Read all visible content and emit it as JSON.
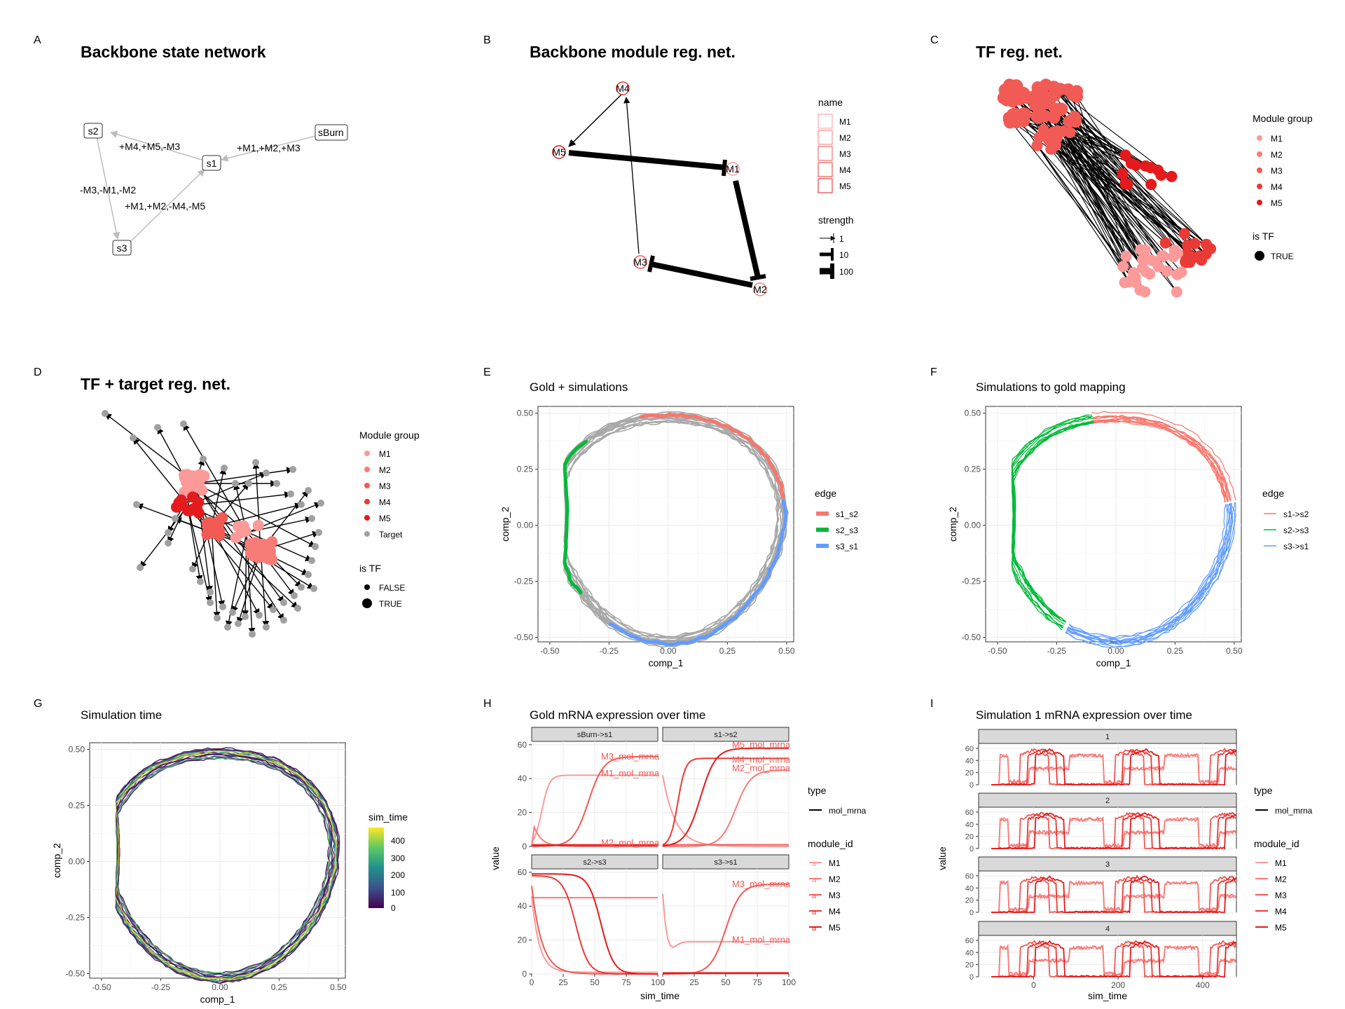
{
  "colors": {
    "M1": "#fb9a99",
    "M2": "#f77c78",
    "M3": "#f25a55",
    "M4": "#ea3a35",
    "M5": "#e41a1c",
    "target": "#a0a0a0",
    "gold": "#a8a8a8",
    "s1_s2": "#f8766d",
    "s2_s3": "#00ba38",
    "s3_s1": "#619cff",
    "viridis": [
      "#440154",
      "#3b528b",
      "#21918c",
      "#5ec962",
      "#fde725"
    ]
  },
  "panels": {
    "A": {
      "letter": "A",
      "title": "Backbone state network"
    },
    "B": {
      "letter": "B",
      "title": "Backbone module reg. net."
    },
    "C": {
      "letter": "C",
      "title": "TF reg. net."
    },
    "D": {
      "letter": "D",
      "title": "TF + target reg. net."
    },
    "E": {
      "letter": "E",
      "title": "Gold + simulations"
    },
    "F": {
      "letter": "F",
      "title": "Simulations to gold mapping"
    },
    "G": {
      "letter": "G",
      "title": "Simulation time"
    },
    "H": {
      "letter": "H",
      "title": "Gold mRNA expression over time"
    },
    "I": {
      "letter": "I",
      "title": "Simulation 1 mRNA expression over time"
    }
  },
  "state_network": {
    "nodes": [
      "s2",
      "s1",
      "sBurn",
      "s3"
    ],
    "edges": [
      {
        "from": "sBurn",
        "to": "s1",
        "label": "+M1,+M2,+M3"
      },
      {
        "from": "s1",
        "to": "s2",
        "label": "+M4,+M5,-M3"
      },
      {
        "from": "s2",
        "to": "s3",
        "label": "-M3,-M1,-M2"
      },
      {
        "from": "s3",
        "to": "s1",
        "label": "+M1,+M2,-M4,-M5"
      }
    ]
  },
  "module_network": {
    "nodes": [
      "M4",
      "M5",
      "M1",
      "M3",
      "M2"
    ],
    "legend_name_title": "name",
    "legend_name_items": [
      "M1",
      "M2",
      "M3",
      "M4",
      "M5"
    ],
    "legend_strength_title": "strength",
    "legend_strength_items": [
      "1",
      "10",
      "100"
    ]
  },
  "tf_network": {
    "legend_module_title": "Module group",
    "legend_module_items": [
      "M1",
      "M2",
      "M3",
      "M4",
      "M5"
    ],
    "legend_tf_title": "is TF",
    "legend_tf_items": [
      "TRUE"
    ]
  },
  "target_network": {
    "legend_module_title": "Module group",
    "legend_module_items": [
      "M1",
      "M2",
      "M3",
      "M4",
      "M5",
      "Target"
    ],
    "legend_tf_title": "is TF",
    "legend_tf_items": [
      "FALSE",
      "TRUE"
    ]
  },
  "chart_data": [
    {
      "panel": "E",
      "type": "line",
      "title": "Gold + simulations",
      "xlabel": "comp_1",
      "ylabel": "comp_2",
      "xlim": [
        -0.55,
        0.53
      ],
      "ylim": [
        -0.52,
        0.53
      ],
      "xticks": [
        "-0.50",
        "-0.25",
        "0.00",
        "0.25",
        "0.50"
      ],
      "yticks": [
        "0.50",
        "0.25",
        "0.00",
        "-0.25",
        "-0.50"
      ],
      "legend_title": "edge",
      "series": [
        {
          "name": "s1_s2",
          "from_angle": 104,
          "to_angle": 14
        },
        {
          "name": "s2_s3",
          "from_angle": 134,
          "to_angle": 218
        },
        {
          "name": "s3_s1",
          "from_angle": 240,
          "to_angle": 372
        }
      ]
    },
    {
      "panel": "F",
      "type": "line",
      "title": "Simulations to gold mapping",
      "xlabel": "comp_1",
      "ylabel": "comp_2",
      "xlim": [
        -0.55,
        0.53
      ],
      "ylim": [
        -0.52,
        0.53
      ],
      "xticks": [
        "-0.50",
        "-0.25",
        "0.00",
        "0.25",
        "0.50"
      ],
      "yticks": [
        "0.50",
        "0.25",
        "0.00",
        "-0.25",
        "-0.50"
      ],
      "legend_title": "edge",
      "series": [
        {
          "name": "s1->s2",
          "from_angle": 102,
          "to_angle": 10
        },
        {
          "name": "s2->s3",
          "from_angle": 102,
          "to_angle": 245
        },
        {
          "name": "s3->s1",
          "from_angle": 245,
          "to_angle": 372
        }
      ]
    },
    {
      "panel": "G",
      "type": "line",
      "title": "Simulation time",
      "xlabel": "comp_1",
      "ylabel": "comp_2",
      "xlim": [
        -0.55,
        0.53
      ],
      "ylim": [
        -0.52,
        0.53
      ],
      "xticks": [
        "-0.50",
        "-0.25",
        "0.00",
        "0.25",
        "0.50"
      ],
      "yticks": [
        "0.50",
        "0.25",
        "0.00",
        "-0.25",
        "-0.50"
      ],
      "legend_title": "sim_time",
      "colorbar_ticks": [
        "400",
        "300",
        "200",
        "100",
        "0"
      ],
      "colorbar_range": [
        0,
        480
      ]
    },
    {
      "panel": "H",
      "type": "line",
      "title": "Gold mRNA expression over time",
      "xlabel": "sim_time",
      "ylabel": "value",
      "xlim": [
        0,
        100
      ],
      "ylim": [
        0,
        62
      ],
      "xticks": [
        "0",
        "25",
        "50",
        "75",
        "100"
      ],
      "yticks": [
        "60",
        "40",
        "20",
        "0"
      ],
      "legend_type_title": "type",
      "legend_type_item": "mol_mrna",
      "legend_module_title": "module_id",
      "legend_module_items": [
        "M1",
        "M2",
        "M3",
        "M4",
        "M5"
      ],
      "facets": [
        {
          "strip": "sBurn->s1",
          "labels": [
            {
              "text": "M3_mol_mrna",
              "x": 55,
              "y": 53
            },
            {
              "text": "M1_mol_mrna",
              "x": 55,
              "y": 43
            },
            {
              "text": "M2_mol_mrna",
              "x": 55,
              "y": 2
            }
          ]
        },
        {
          "strip": "s1->s2",
          "labels": [
            {
              "text": "M5_mol_mrna",
              "x": 55,
              "y": 60
            },
            {
              "text": "M4_mol_mrna",
              "x": 55,
              "y": 51
            },
            {
              "text": "M2_mol_mrna",
              "x": 55,
              "y": 46
            }
          ]
        },
        {
          "strip": "s2->s3",
          "labels": []
        },
        {
          "strip": "s3->s1",
          "labels": [
            {
              "text": "M3_mol_mrna",
              "x": 55,
              "y": 53
            },
            {
              "text": "M1_mol_mrna",
              "x": 55,
              "y": 20
            }
          ]
        }
      ]
    },
    {
      "panel": "I",
      "type": "line",
      "title": "Simulation 1 mRNA expression over time",
      "xlabel": "sim_time",
      "ylabel": "value",
      "xlim": [
        -130,
        480
      ],
      "ylim": [
        0,
        68
      ],
      "xticks": [
        "0",
        "200",
        "400"
      ],
      "yticks": [
        "60",
        "40",
        "20",
        "0"
      ],
      "legend_type_title": "type",
      "legend_type_item": "mol_mrna",
      "legend_module_title": "module_id",
      "legend_module_items": [
        "M1",
        "M2",
        "M3",
        "M4",
        "M5"
      ],
      "facets": [
        {
          "strip": "1"
        },
        {
          "strip": "2"
        },
        {
          "strip": "3"
        },
        {
          "strip": "4"
        }
      ]
    }
  ]
}
